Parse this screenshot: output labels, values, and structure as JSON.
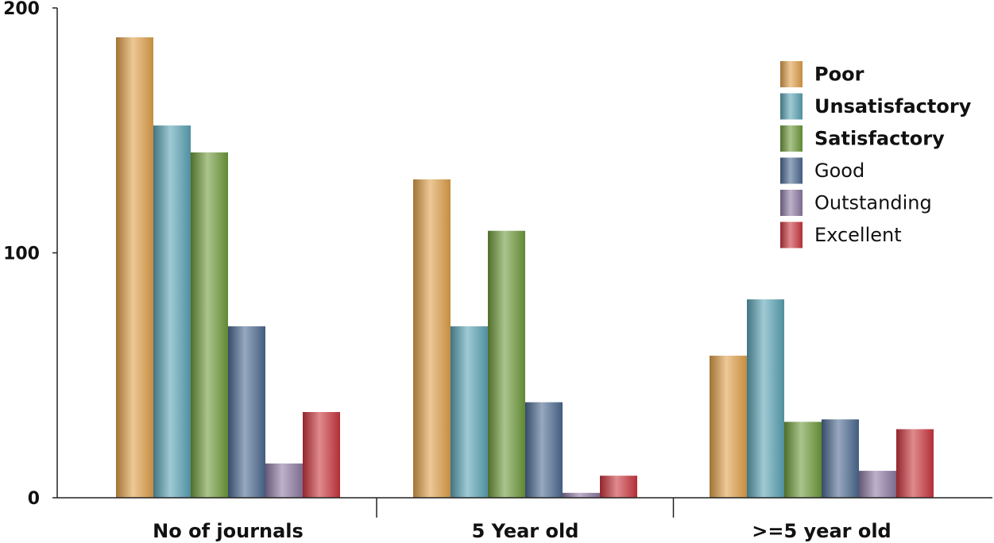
{
  "chart_data": {
    "type": "bar",
    "title": "",
    "xlabel": "",
    "ylabel": "",
    "ylim": [
      0,
      200
    ],
    "yticks": [
      0,
      100,
      200
    ],
    "categories": [
      "No of journals",
      "5 Year old",
      ">=5 year old"
    ],
    "series": [
      {
        "name": "Poor",
        "values": [
          188,
          130,
          58
        ],
        "color": "#e0a04a"
      },
      {
        "name": "Unsatisfactory",
        "values": [
          152,
          70,
          81
        ],
        "color": "#5aa3b5"
      },
      {
        "name": "Satisfactory",
        "values": [
          141,
          109,
          31
        ],
        "color": "#6e9a3a"
      },
      {
        "name": "Good",
        "values": [
          70,
          39,
          32
        ],
        "color": "#4b6990"
      },
      {
        "name": "Outstanding",
        "values": [
          14,
          2,
          11
        ],
        "color": "#8e7aa3"
      },
      {
        "name": "Excellent",
        "values": [
          35,
          9,
          28
        ],
        "color": "#c9353d"
      }
    ],
    "legend": {
      "position": "top-right",
      "bold_entries": [
        "Poor",
        "Unsatisfactory",
        "Satisfactory"
      ]
    },
    "grid": false
  }
}
